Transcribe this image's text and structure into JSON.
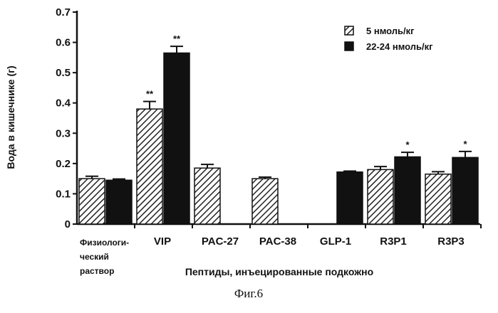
{
  "chart_data": {
    "type": "bar",
    "categories": [
      "Физиологический раствор",
      "VIP",
      "PAC-27",
      "PAC-38",
      "GLP-1",
      "R3P1",
      "R3P3"
    ],
    "category_label_lines": [
      [
        "Физиологи-",
        "ческий",
        "раствор"
      ],
      [
        "VIP"
      ],
      [
        "PAC-27"
      ],
      [
        "PAC-38"
      ],
      [
        "GLP-1"
      ],
      [
        "R3P1"
      ],
      [
        "R3P3"
      ]
    ],
    "series": [
      {
        "name": "5 нмоль/кг",
        "values": [
          0.15,
          0.38,
          0.185,
          0.15,
          null,
          0.18,
          0.165
        ],
        "errors": [
          0.008,
          0.025,
          0.012,
          0.005,
          null,
          0.01,
          0.008
        ],
        "annotations": [
          "",
          "**",
          "",
          "",
          "",
          "",
          ""
        ],
        "fill": "hatched"
      },
      {
        "name": "22-24 нмоль/кг",
        "values": [
          0.145,
          0.565,
          null,
          null,
          0.172,
          0.222,
          0.22
        ],
        "errors": [
          0.004,
          0.022,
          null,
          null,
          0.003,
          0.015,
          0.02
        ],
        "annotations": [
          "",
          "**",
          "",
          "",
          "",
          "*",
          "*"
        ],
        "fill": "solid"
      }
    ],
    "title": "",
    "xlabel": "Пептиды, инъецированные подкожно",
    "ylabel": "Вода в кишечнике (г)",
    "ylim": [
      0,
      0.7
    ],
    "yticks": [
      "0",
      "0.1",
      "0.2",
      "0.3",
      "0.4",
      "0.5",
      "0.6",
      "0.7"
    ],
    "legend_position": "top-right",
    "grid": false
  },
  "caption": "Фиг.6",
  "colors": {
    "ink": "#111111",
    "background": "#ffffff"
  }
}
